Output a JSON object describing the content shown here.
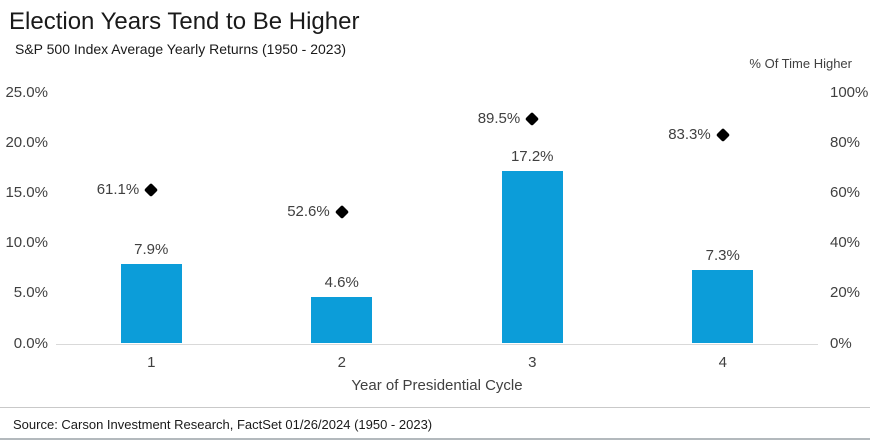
{
  "header": {
    "title": "Election Years Tend to Be Higher",
    "subtitle": "S&P 500 Index Average Yearly Returns (1950 - 2023)"
  },
  "footer": {
    "source": "Source: Carson Investment Research, FactSet 01/26/2024 (1950 - 2023)"
  },
  "colors": {
    "bar": "#0c9dd9",
    "diamond": "#000000",
    "axis_line": "#d9d9d9",
    "text": "#404040"
  },
  "chart_data": {
    "type": "bar",
    "subtype": "bar-with-scatter-diamond-overlay",
    "categories": [
      "1",
      "2",
      "3",
      "4"
    ],
    "series": [
      {
        "name": "S&P 500 Index Average Yearly Return",
        "type": "bar",
        "axis": "left",
        "values": [
          7.9,
          4.6,
          17.2,
          7.3
        ],
        "labels": [
          "7.9%",
          "4.6%",
          "17.2%",
          "7.3%"
        ]
      },
      {
        "name": "% Of Time Higher",
        "type": "scatter",
        "marker": "diamond",
        "axis": "right",
        "values": [
          61.1,
          52.6,
          89.5,
          83.3
        ],
        "labels": [
          "61.1%",
          "52.6%",
          "89.5%",
          "83.3%"
        ]
      }
    ],
    "left_axis": {
      "ticks": [
        "0.0%",
        "5.0%",
        "10.0%",
        "15.0%",
        "20.0%",
        "25.0%"
      ],
      "tick_values": [
        0,
        5,
        10,
        15,
        20,
        25
      ],
      "min": 0,
      "max": 25
    },
    "right_axis": {
      "title": "% Of Time Higher",
      "ticks": [
        "0%",
        "20%",
        "40%",
        "60%",
        "80%",
        "100%"
      ],
      "tick_values": [
        0,
        20,
        40,
        60,
        80,
        100
      ],
      "min": 0,
      "max": 100
    },
    "x_axis": {
      "title": "Year of Presidential Cycle"
    },
    "grid": false,
    "legend": "none"
  }
}
